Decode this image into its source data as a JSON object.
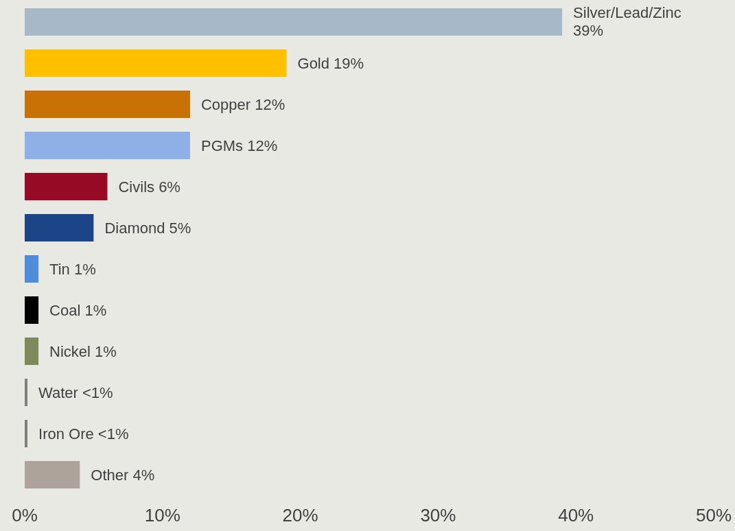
{
  "chart_data": {
    "type": "bar",
    "orientation": "horizontal",
    "categories": [
      "Silver/Lead/Zinc",
      "Gold",
      "Copper",
      "PGMs",
      "Civils",
      "Diamond",
      "Tin",
      "Coal",
      "Nickel",
      "Water",
      "Iron Ore",
      "Other"
    ],
    "values": [
      39,
      19,
      12,
      12,
      6,
      5,
      1,
      1,
      1,
      0.2,
      0.2,
      4
    ],
    "value_labels": [
      "39%",
      "19%",
      "12%",
      "12%",
      "6%",
      "5%",
      "1%",
      "1%",
      "1%",
      "<1%",
      "<1%",
      "4%"
    ],
    "colors": [
      "#a7b9c9",
      "#ffc000",
      "#c87104",
      "#8eb0e6",
      "#960a26",
      "#1b4586",
      "#4f8ddb",
      "#000000",
      "#7f8a5b",
      "#808080",
      "#808080",
      "#ada39a"
    ],
    "xlim": [
      0,
      50
    ],
    "xticks": [
      {
        "value": 0,
        "label": "0%"
      },
      {
        "value": 10,
        "label": "10%"
      },
      {
        "value": 20,
        "label": "20%"
      },
      {
        "value": 30,
        "label": "30%"
      },
      {
        "value": 40,
        "label": "40%"
      },
      {
        "value": 50,
        "label": "50%"
      }
    ],
    "tick_labels": "x",
    "grid": false,
    "legend": false
  }
}
